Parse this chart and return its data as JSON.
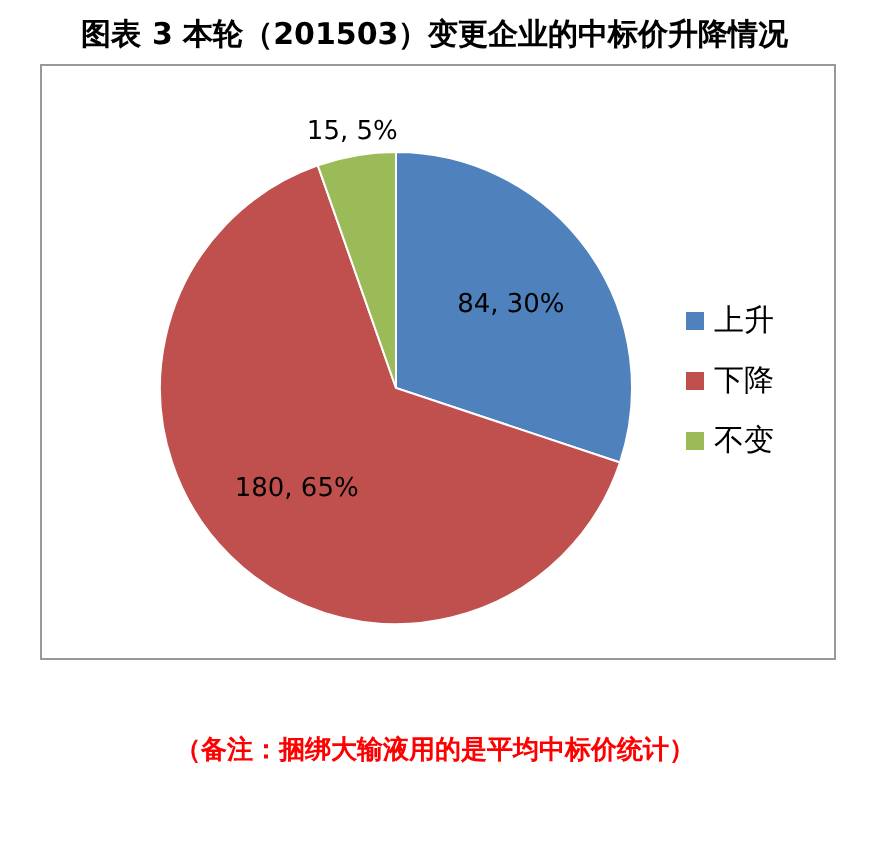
{
  "chart_data": {
    "type": "pie",
    "title": "图表 3 本轮（201503）变更企业的中标价升降情况",
    "categories": [
      "上升",
      "下降",
      "不变"
    ],
    "values": [
      84,
      180,
      15
    ],
    "colors": [
      "#4f81bd",
      "#c0504d",
      "#9bbb59"
    ],
    "value_labels": [
      "84, 30%",
      "180, 65%",
      "15, 5%"
    ],
    "legend": "right",
    "annotations": [
      "（备注：捆绑大输液用的是平均中标价统计）"
    ]
  }
}
